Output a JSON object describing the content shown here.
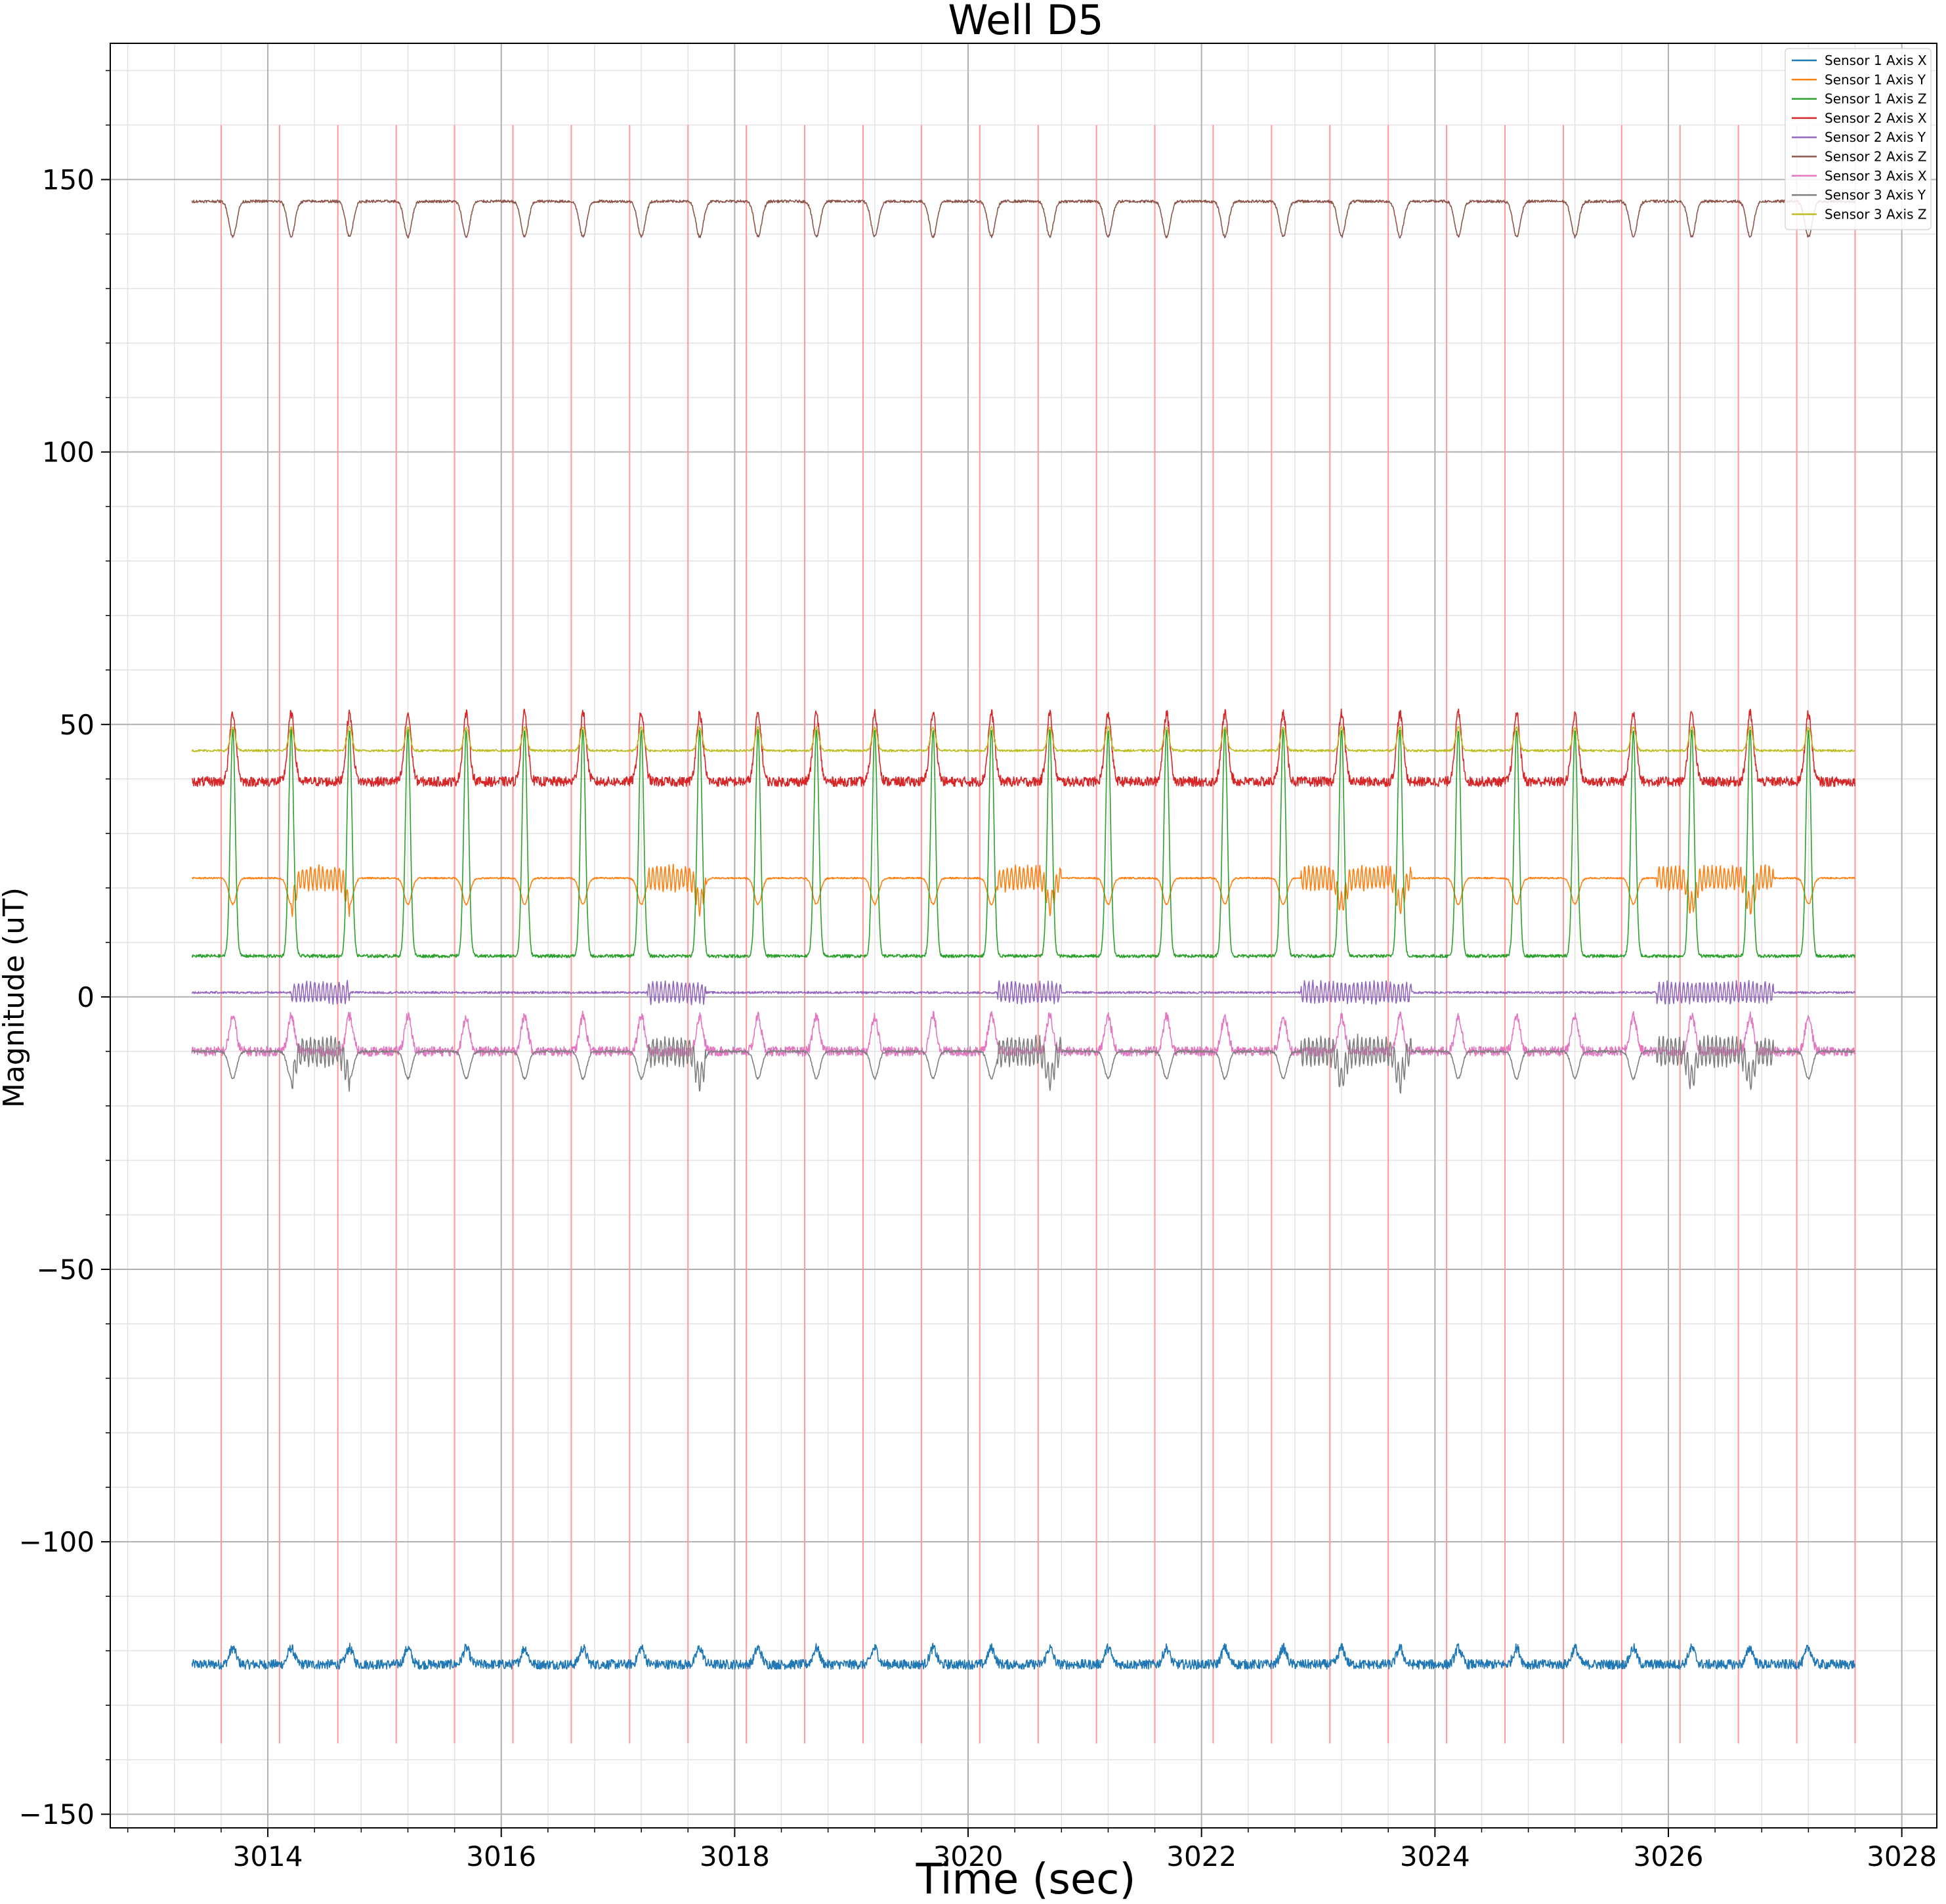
{
  "chart_data": {
    "type": "line",
    "title": "Well D5",
    "xlabel": "Time (sec)",
    "ylabel": "Magnitude (uT)",
    "xlim": [
      3012.65,
      3028.3
    ],
    "ylim": [
      -152.5,
      175
    ],
    "xticks": [
      3014,
      3016,
      3018,
      3020,
      3022,
      3024,
      3026,
      3028
    ],
    "xtick_labels": [
      "3014",
      "3016",
      "3018",
      "3020",
      "3022",
      "3024",
      "3026",
      "3028"
    ],
    "yticks": [
      -150,
      -100,
      -50,
      0,
      50,
      100,
      150
    ],
    "ytick_labels": [
      "−150",
      "−100",
      "−50",
      "0",
      "50",
      "100",
      "150"
    ],
    "grid": true,
    "legend_position": "top-right",
    "x_range": [
      3013.35,
      3027.6
    ],
    "period_sec": 0.5,
    "first_peak_sec": 3013.7,
    "vertical_markers": {
      "color": "#ff9999",
      "y_range": [
        -137,
        160
      ],
      "x": [
        3013.6,
        3014.1,
        3014.6,
        3015.1,
        3015.6,
        3016.1,
        3016.6,
        3017.1,
        3017.6,
        3018.1,
        3018.6,
        3019.1,
        3019.6,
        3020.1,
        3020.6,
        3021.1,
        3021.6,
        3022.1,
        3022.6,
        3023.1,
        3023.6,
        3024.1,
        3024.6,
        3025.1,
        3025.6,
        3026.1,
        3026.6,
        3027.1,
        3027.6
      ]
    },
    "series": [
      {
        "name": "Sensor 1 Axis X",
        "color": "#1f77b4",
        "baseline": -122.5,
        "peak": -119.5,
        "shape": "bump",
        "noise": 0.9
      },
      {
        "name": "Sensor 1 Axis Y",
        "color": "#ff7f0e",
        "baseline": 21.8,
        "peak": 17.0,
        "shape": "dip",
        "noise": 0.15
      },
      {
        "name": "Sensor 1 Axis Z",
        "color": "#2ca02c",
        "baseline": 7.5,
        "peak": 49.0,
        "shape": "spike",
        "noise": 0.3
      },
      {
        "name": "Sensor 2 Axis X",
        "color": "#d62728",
        "baseline": 39.5,
        "peak": 52.0,
        "shape": "bump",
        "noise": 0.9
      },
      {
        "name": "Sensor 2 Axis Y",
        "color": "#9467bd",
        "baseline": 0.8,
        "peak": 1.2,
        "shape": "flat",
        "noise": 0.2
      },
      {
        "name": "Sensor 2 Axis Z",
        "color": "#8c564b",
        "baseline": 146.0,
        "peak": 139.5,
        "shape": "dip",
        "noise": 0.25
      },
      {
        "name": "Sensor 3 Axis X",
        "color": "#e377c2",
        "baseline": -10.0,
        "peak": -3.5,
        "shape": "bump",
        "noise": 0.9
      },
      {
        "name": "Sensor 3 Axis Y",
        "color": "#7f7f7f",
        "baseline": -10.0,
        "peak": -15.0,
        "shape": "dip",
        "noise": 0.2
      },
      {
        "name": "Sensor 3 Axis Z",
        "color": "#bcbd22",
        "baseline": 45.2,
        "peak": 49.5,
        "shape": "spike",
        "noise": 0.2
      }
    ],
    "noisy_bursts": {
      "windows": [
        [
          3014.2,
          3014.7
        ],
        [
          3017.25,
          3017.75
        ],
        [
          3020.25,
          3020.8
        ],
        [
          3022.85,
          3023.8
        ],
        [
          3025.9,
          3026.9
        ]
      ],
      "affects": [
        "Sensor 1 Axis Y",
        "Sensor 2 Axis Y",
        "Sensor 3 Axis Y"
      ],
      "amplitude": [
        2.5,
        2.2,
        3.0
      ]
    }
  }
}
